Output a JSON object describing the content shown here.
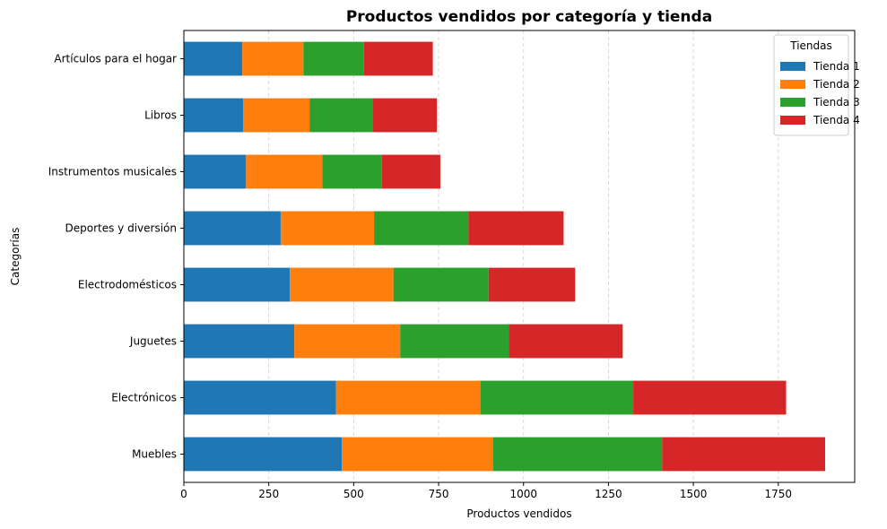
{
  "chart_data": {
    "type": "bar",
    "orientation": "horizontal",
    "stacked": true,
    "title": "Productos vendidos por categoría y tienda",
    "xlabel": "Productos vendidos",
    "ylabel": "Categorías",
    "xlim": [
      0,
      1975
    ],
    "xticks": [
      0,
      250,
      500,
      750,
      1000,
      1250,
      1500,
      1750
    ],
    "grid": "vertical-dashed",
    "legend": {
      "title": "Tiendas",
      "placement": "top-right"
    },
    "categories": [
      "Artículos para el hogar",
      "Libros",
      "Instrumentos musicales",
      "Deportes y diversión",
      "Electrodomésticos",
      "Juguetes",
      "Electrónicos",
      "Muebles"
    ],
    "series": [
      {
        "name": "Tienda 1",
        "color": "#1f77b4",
        "values": [
          172,
          175,
          183,
          285,
          312,
          325,
          448,
          465
        ]
      },
      {
        "name": "Tienda 2",
        "color": "#ff7f0e",
        "values": [
          180,
          195,
          225,
          275,
          305,
          312,
          425,
          445
        ]
      },
      {
        "name": "Tienda 3",
        "color": "#2ca02c",
        "values": [
          178,
          185,
          175,
          278,
          280,
          320,
          450,
          498
        ]
      },
      {
        "name": "Tienda 4",
        "color": "#d62728",
        "values": [
          203,
          190,
          172,
          280,
          255,
          335,
          450,
          480
        ]
      }
    ]
  }
}
